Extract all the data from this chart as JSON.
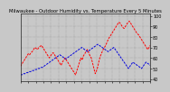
{
  "title": "Milwaukee - Outdoor Humidity vs. Temperature Every 5 Minutes",
  "bg_color": "#c8c8c8",
  "plot_bg_color": "#c8c8c8",
  "red_color": "#ff0000",
  "blue_color": "#0000dd",
  "ylim": [
    38,
    102
  ],
  "yticks": [
    40,
    50,
    60,
    70,
    80,
    90,
    100
  ],
  "ylabel_fontsize": 3.5,
  "title_fontsize": 3.8,
  "red_y": [
    52,
    54,
    56,
    58,
    60,
    62,
    64,
    63,
    65,
    66,
    68,
    70,
    69,
    68,
    70,
    71,
    72,
    70,
    68,
    66,
    64,
    62,
    60,
    62,
    64,
    65,
    63,
    61,
    59,
    57,
    55,
    53,
    56,
    58,
    60,
    58,
    56,
    54,
    52,
    50,
    48,
    46,
    44,
    48,
    52,
    56,
    60,
    58,
    62,
    64,
    66,
    68,
    65,
    62,
    60,
    55,
    50,
    45,
    48,
    52,
    58,
    62,
    65,
    68,
    70,
    72,
    75,
    78,
    80,
    82,
    84,
    86,
    88,
    90,
    92,
    94,
    93,
    91,
    89,
    88,
    90,
    92,
    94,
    95,
    93,
    91,
    89,
    87,
    85,
    83,
    82,
    80,
    78,
    76,
    74,
    72,
    70,
    68,
    70,
    72
  ],
  "blue_y": [
    44,
    44,
    45,
    45,
    46,
    46,
    47,
    47,
    48,
    48,
    49,
    49,
    50,
    50,
    51,
    51,
    52,
    53,
    54,
    55,
    56,
    57,
    58,
    59,
    60,
    61,
    62,
    63,
    62,
    61,
    60,
    59,
    60,
    61,
    62,
    63,
    64,
    65,
    66,
    67,
    68,
    69,
    70,
    69,
    68,
    67,
    66,
    67,
    68,
    69,
    70,
    71,
    72,
    73,
    72,
    71,
    70,
    69,
    68,
    67,
    66,
    67,
    68,
    69,
    70,
    68,
    66,
    64,
    62,
    60,
    58,
    56,
    54,
    52,
    50,
    52,
    54,
    56,
    55,
    54,
    53,
    52,
    51,
    50,
    52,
    54,
    56,
    55,
    54,
    53
  ],
  "num_xticks": 18
}
